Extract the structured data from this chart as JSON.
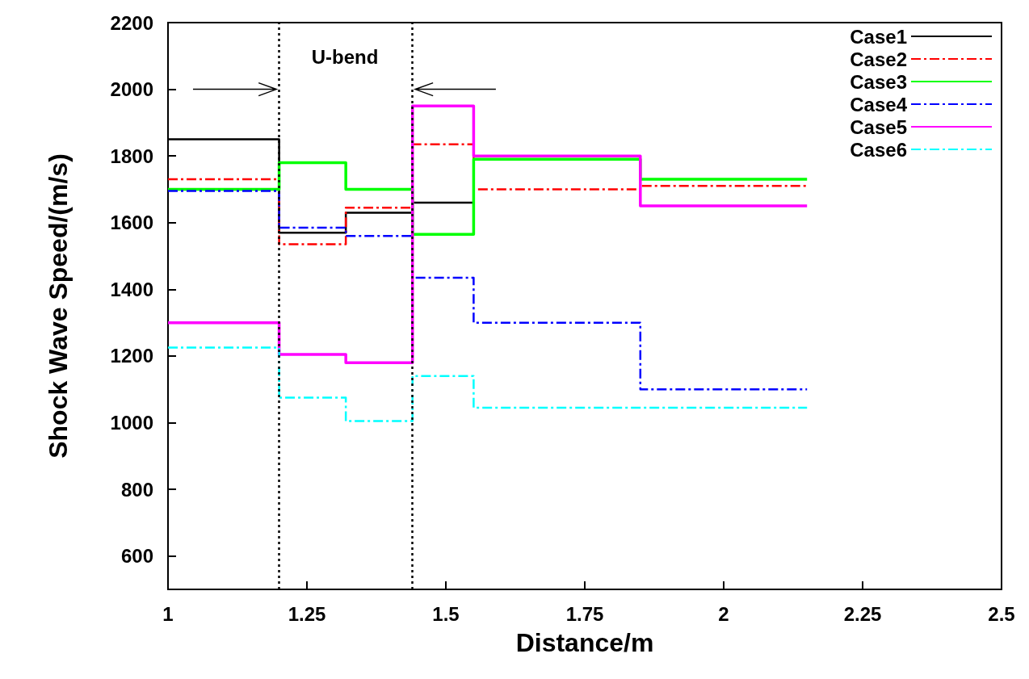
{
  "chart_data": {
    "type": "step",
    "xlabel": "Distance/m",
    "ylabel": "Shock Wave Speed/(m/s)",
    "xlim": [
      1,
      2.5
    ],
    "xticks": [
      1,
      1.25,
      1.5,
      1.75,
      2,
      2.25,
      2.5
    ],
    "ylim": [
      500,
      2200
    ],
    "yticks": [
      600,
      800,
      1000,
      1200,
      1400,
      1600,
      1800,
      2000,
      2200
    ],
    "grid": false,
    "legend": "top right",
    "marker": "none",
    "series": [
      {
        "name": "Case1",
        "color": "#000000",
        "line_style": "solid",
        "x": [
          1,
          1.2,
          1.32,
          1.44,
          1.55
        ],
        "values": [
          1850,
          1570,
          1630,
          1660,
          1660
        ]
      },
      {
        "name": "Case2",
        "color": "#ff0000",
        "line_style": "dashed",
        "x": [
          1,
          1.2,
          1.32,
          1.44,
          1.55,
          1.85,
          2.15
        ],
        "values": [
          1730,
          1535,
          1645,
          1835,
          1700,
          1710,
          1710
        ]
      },
      {
        "name": "Case3",
        "color": "#00ff00",
        "line_style": "solid",
        "x": [
          1,
          1.2,
          1.32,
          1.44,
          1.55,
          1.85,
          2.15
        ],
        "values": [
          1700,
          1780,
          1700,
          1565,
          1790,
          1730,
          1730
        ]
      },
      {
        "name": "Case4",
        "color": "#0000ff",
        "line_style": "dashed",
        "x": [
          1,
          1.2,
          1.32,
          1.44,
          1.55,
          1.85,
          2.15
        ],
        "values": [
          1695,
          1585,
          1560,
          1435,
          1300,
          1100,
          1100
        ]
      },
      {
        "name": "Case5",
        "color": "#ff00ff",
        "line_style": "solid",
        "x": [
          1,
          1.2,
          1.32,
          1.44,
          1.55,
          1.85,
          2.15
        ],
        "values": [
          1300,
          1205,
          1180,
          1950,
          1800,
          1650,
          1650
        ]
      },
      {
        "name": "Case6",
        "color": "#00ffff",
        "line_style": "dashed",
        "x": [
          1,
          1.2,
          1.32,
          1.44,
          1.55,
          1.85,
          2.15
        ],
        "values": [
          1225,
          1075,
          1005,
          1140,
          1045,
          1045,
          1045
        ]
      }
    ],
    "ref_lines": [
      {
        "axis": "x",
        "value": 1.2,
        "color": "#000000",
        "line_style": "dotted"
      },
      {
        "axis": "x",
        "value": 1.44,
        "color": "#000000",
        "line_style": "dotted"
      }
    ],
    "annotations": [
      "U-bend"
    ]
  }
}
